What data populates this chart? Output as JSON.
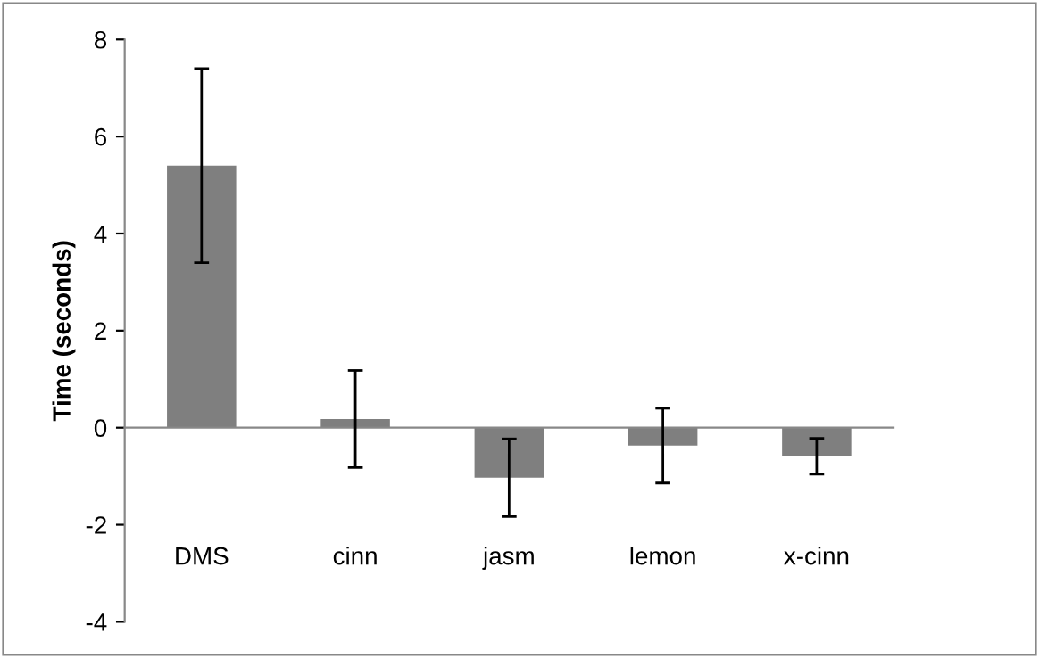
{
  "chart_data": {
    "type": "bar",
    "ylabel": "Time (seconds)",
    "categories": [
      "DMS",
      "cinn",
      "jasm",
      "lemon",
      "x-cinn"
    ],
    "values": [
      5.4,
      0.18,
      -1.03,
      -0.37,
      -0.59
    ],
    "errors": [
      2.0,
      1.0,
      0.8,
      0.77,
      0.37
    ],
    "color": "#7f7f7f",
    "ylim": [
      -4,
      8
    ],
    "yticks": [
      -4,
      -2,
      0,
      2,
      4,
      6,
      8
    ]
  }
}
